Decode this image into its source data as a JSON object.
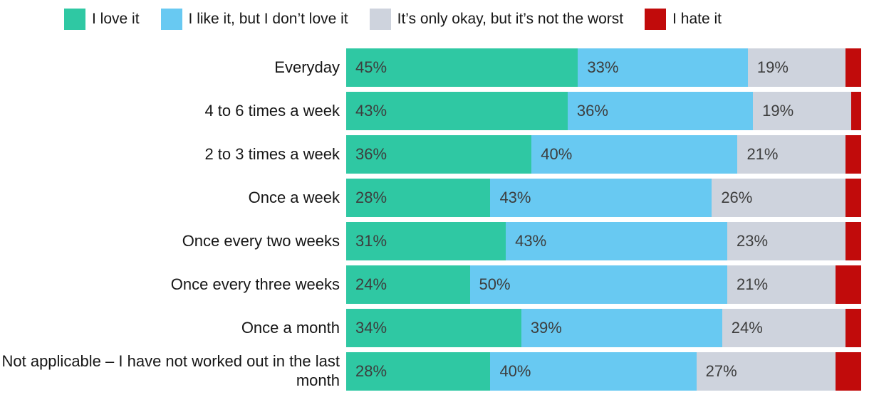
{
  "chart_data": {
    "type": "bar",
    "orientation": "horizontal",
    "stacked": true,
    "grid": false,
    "legend_position": "top",
    "xlim": [
      0,
      100
    ],
    "value_suffix": "%",
    "categories": [
      "Everyday",
      "4 to 6 times a week",
      "2 to 3 times a week",
      "Once a week",
      "Once every two weeks",
      "Once every three weeks",
      "Once a month",
      "Not applicable – I have not worked out in the last month"
    ],
    "series": [
      {
        "name": "I love it",
        "color": "#2fc8a3",
        "values": [
          45,
          43,
          36,
          28,
          31,
          24,
          34,
          28
        ],
        "labels_visible": true
      },
      {
        "name": "I like it, but I don’t love it",
        "color": "#68c9f2",
        "values": [
          33,
          36,
          40,
          43,
          43,
          50,
          39,
          40
        ],
        "labels_visible": true
      },
      {
        "name": "It’s only okay, but it’s not the worst",
        "color": "#ced3dd",
        "values": [
          19,
          19,
          21,
          26,
          23,
          21,
          24,
          27
        ],
        "labels_visible": true
      },
      {
        "name": "I hate it",
        "color": "#c10b0b",
        "values": [
          3,
          2,
          3,
          3,
          3,
          5,
          3,
          5
        ],
        "labels_visible": false
      }
    ]
  }
}
